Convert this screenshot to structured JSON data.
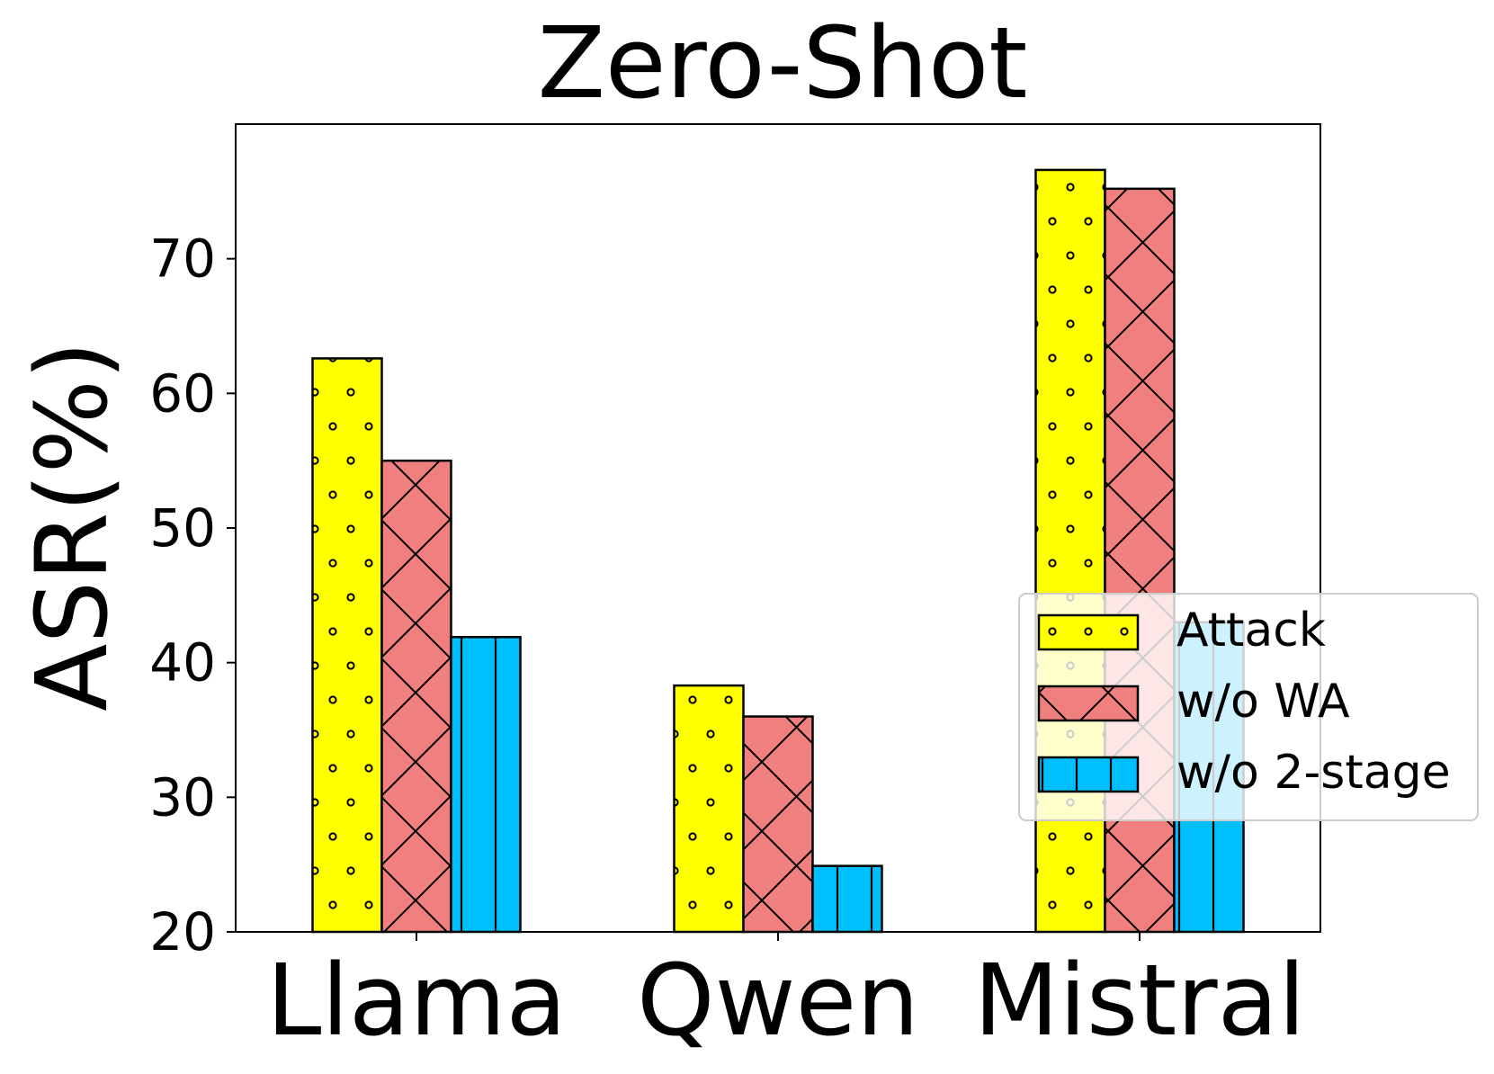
{
  "chart_data": {
    "type": "bar",
    "title": "Zero-Shot",
    "xlabel": "",
    "ylabel": "ASR(%)",
    "ylim": [
      20,
      80
    ],
    "yticks": [
      20,
      30,
      40,
      50,
      60,
      70
    ],
    "categories": [
      "Llama",
      "Qwen",
      "Mistral"
    ],
    "series": [
      {
        "name": "Attack",
        "values": [
          62.6,
          38.3,
          76.6
        ],
        "color": "#ffff00",
        "hatch": "dots"
      },
      {
        "name": "w/o WA",
        "values": [
          55.0,
          36.0,
          75.2
        ],
        "color": "#f08080",
        "hatch": "crosshatch"
      },
      {
        "name": "w/o 2-stage",
        "values": [
          41.9,
          24.9,
          43.0
        ],
        "color": "#00bfff",
        "hatch": "vertical"
      }
    ],
    "legend_position": "right",
    "grid": false
  }
}
